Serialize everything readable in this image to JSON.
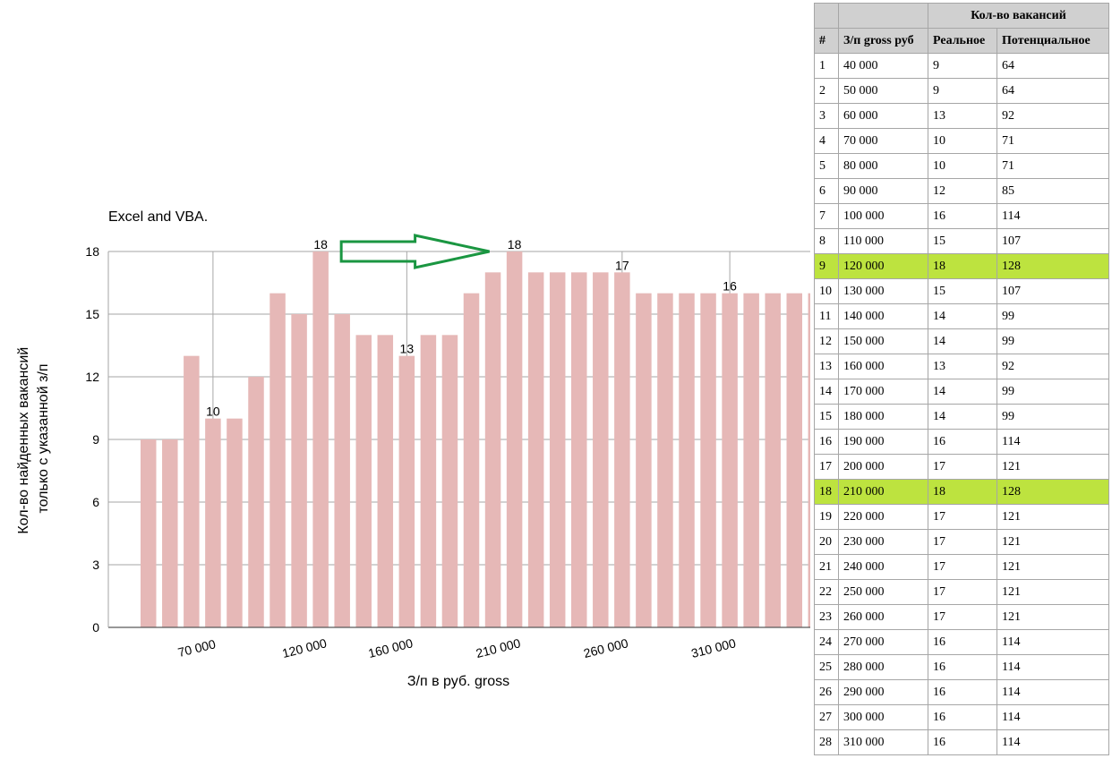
{
  "chart_data": {
    "type": "bar",
    "title": "Excel and VBA.",
    "xlabel": "З/п в руб. gross",
    "ylabel": [
      "Кол-во найденных вакансий",
      "только с указанной з/п"
    ],
    "categories": [
      40000,
      50000,
      60000,
      70000,
      80000,
      90000,
      100000,
      110000,
      120000,
      130000,
      140000,
      150000,
      160000,
      170000,
      180000,
      190000,
      200000,
      210000,
      220000,
      230000,
      240000,
      250000,
      260000,
      270000,
      280000,
      290000,
      300000,
      310000,
      320000,
      330000,
      340000,
      350000
    ],
    "values": [
      9,
      9,
      13,
      10,
      10,
      12,
      16,
      15,
      18,
      15,
      14,
      14,
      13,
      14,
      14,
      16,
      17,
      18,
      17,
      17,
      17,
      17,
      17,
      16,
      16,
      16,
      16,
      16,
      16,
      16,
      16,
      16
    ],
    "x_tick_labels": [
      {
        "x": 70000,
        "label": "70 000"
      },
      {
        "x": 120000,
        "label": "120 000"
      },
      {
        "x": 160000,
        "label": "160 000"
      },
      {
        "x": 210000,
        "label": "210 000"
      },
      {
        "x": 260000,
        "label": "260 000"
      },
      {
        "x": 310000,
        "label": "310 000"
      }
    ],
    "y_ticks": [
      0,
      3,
      6,
      9,
      12,
      15,
      18
    ],
    "ylim": [
      0,
      18
    ],
    "data_labels": [
      {
        "x": 70000,
        "label": "10"
      },
      {
        "x": 120000,
        "label": "18"
      },
      {
        "x": 160000,
        "label": "13"
      },
      {
        "x": 210000,
        "label": "18"
      },
      {
        "x": 260000,
        "label": "17"
      },
      {
        "x": 310000,
        "label": "16"
      }
    ],
    "annotation": {
      "type": "arrow",
      "from_x": 120000,
      "to_x": 210000
    },
    "grid": true,
    "bar_color": "#e6b8b7",
    "arrow_color": "#1a9641"
  },
  "table": {
    "group_header": "Кол-во вакансий",
    "columns": [
      "#",
      "З/п gross руб",
      "Реальное",
      "Потенциальное"
    ],
    "highlight_color": "#bde33f",
    "rows": [
      {
        "n": "1",
        "salary": "40 000",
        "real": "9",
        "potential": "64",
        "highlight": false
      },
      {
        "n": "2",
        "salary": "50 000",
        "real": "9",
        "potential": "64",
        "highlight": false
      },
      {
        "n": "3",
        "salary": "60 000",
        "real": "13",
        "potential": "92",
        "highlight": false
      },
      {
        "n": "4",
        "salary": "70 000",
        "real": "10",
        "potential": "71",
        "highlight": false
      },
      {
        "n": "5",
        "salary": "80 000",
        "real": "10",
        "potential": "71",
        "highlight": false
      },
      {
        "n": "6",
        "salary": "90 000",
        "real": "12",
        "potential": "85",
        "highlight": false
      },
      {
        "n": "7",
        "salary": "100 000",
        "real": "16",
        "potential": "114",
        "highlight": false
      },
      {
        "n": "8",
        "salary": "110 000",
        "real": "15",
        "potential": "107",
        "highlight": false
      },
      {
        "n": "9",
        "salary": "120 000",
        "real": "18",
        "potential": "128",
        "highlight": true
      },
      {
        "n": "10",
        "salary": "130 000",
        "real": "15",
        "potential": "107",
        "highlight": false
      },
      {
        "n": "11",
        "salary": "140 000",
        "real": "14",
        "potential": "99",
        "highlight": false
      },
      {
        "n": "12",
        "salary": "150 000",
        "real": "14",
        "potential": "99",
        "highlight": false
      },
      {
        "n": "13",
        "salary": "160 000",
        "real": "13",
        "potential": "92",
        "highlight": false
      },
      {
        "n": "14",
        "salary": "170 000",
        "real": "14",
        "potential": "99",
        "highlight": false
      },
      {
        "n": "15",
        "salary": "180 000",
        "real": "14",
        "potential": "99",
        "highlight": false
      },
      {
        "n": "16",
        "salary": "190 000",
        "real": "16",
        "potential": "114",
        "highlight": false
      },
      {
        "n": "17",
        "salary": "200 000",
        "real": "17",
        "potential": "121",
        "highlight": false
      },
      {
        "n": "18",
        "salary": "210 000",
        "real": "18",
        "potential": "128",
        "highlight": true
      },
      {
        "n": "19",
        "salary": "220 000",
        "real": "17",
        "potential": "121",
        "highlight": false
      },
      {
        "n": "20",
        "salary": "230 000",
        "real": "17",
        "potential": "121",
        "highlight": false
      },
      {
        "n": "21",
        "salary": "240 000",
        "real": "17",
        "potential": "121",
        "highlight": false
      },
      {
        "n": "22",
        "salary": "250 000",
        "real": "17",
        "potential": "121",
        "highlight": false
      },
      {
        "n": "23",
        "salary": "260 000",
        "real": "17",
        "potential": "121",
        "highlight": false
      },
      {
        "n": "24",
        "salary": "270 000",
        "real": "16",
        "potential": "114",
        "highlight": false
      },
      {
        "n": "25",
        "salary": "280 000",
        "real": "16",
        "potential": "114",
        "highlight": false
      },
      {
        "n": "26",
        "salary": "290 000",
        "real": "16",
        "potential": "114",
        "highlight": false
      },
      {
        "n": "27",
        "salary": "300 000",
        "real": "16",
        "potential": "114",
        "highlight": false
      },
      {
        "n": "28",
        "salary": "310 000",
        "real": "16",
        "potential": "114",
        "highlight": false
      }
    ]
  }
}
